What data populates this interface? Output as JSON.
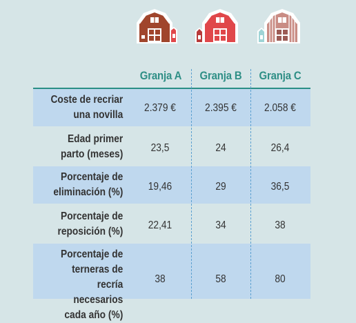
{
  "columns": [
    "Granja A",
    "Granja B",
    "Granja C"
  ],
  "rows": [
    {
      "label_1": "Coste de recriar",
      "label_2": "una novilla",
      "label_3": "",
      "label_4": "",
      "values": [
        "2.379 €",
        "2.395 €",
        "2.058 €"
      ]
    },
    {
      "label_1": "Edad primer",
      "label_2": "parto (meses)",
      "label_3": "",
      "label_4": "",
      "values": [
        "23,5",
        "24",
        "26,4"
      ]
    },
    {
      "label_1": "Porcentaje de",
      "label_2": "eliminación (%)",
      "label_3": "",
      "label_4": "",
      "values": [
        "19,46",
        "29",
        "36,5"
      ]
    },
    {
      "label_1": "Porcentaje de",
      "label_2": "reposición (%)",
      "label_3": "",
      "label_4": "",
      "values": [
        "22,41",
        "34",
        "38"
      ]
    },
    {
      "label_1": "Porcentaje de",
      "label_2": "terneras de",
      "label_3": "recría necesarios",
      "label_4": "cada año (%)",
      "values": [
        "38",
        "58",
        "80"
      ]
    }
  ],
  "colors": {
    "background": "#d6e5e7",
    "header_text": "#2f8f86",
    "row_shade": "#bfd8ee",
    "barn_a": "#a0452c",
    "barn_b": "#e0474a",
    "barn_c": "#c98c84"
  },
  "icons": [
    "barn-icon",
    "barn-icon",
    "barn-icon"
  ]
}
